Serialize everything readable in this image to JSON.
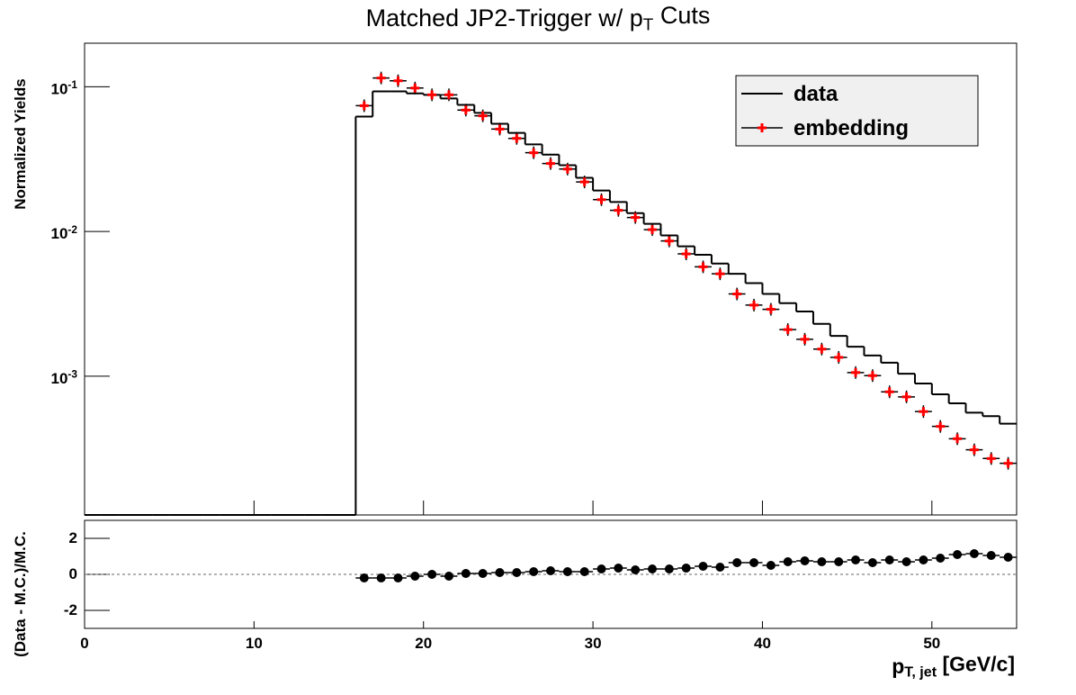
{
  "chart_data": [
    {
      "type": "histogram",
      "title": "Matched JP2-Trigger w/ p_{T} Cuts",
      "ylabel": "Normalized Yields",
      "log_y": true,
      "legend": "top-right",
      "xlim": [
        0,
        55
      ],
      "ylim": [
        0.00011,
        0.2
      ],
      "yticks": [
        {
          "value": 0.1,
          "label": "10^{-1}"
        },
        {
          "value": 0.01,
          "label": "10^{-2}"
        },
        {
          "value": 0.001,
          "label": "10^{-3}"
        }
      ],
      "bins": [
        0,
        1,
        2,
        3,
        4,
        5,
        6,
        7,
        8,
        9,
        10,
        11,
        12,
        13,
        14,
        15,
        16,
        17,
        18,
        19,
        20,
        21,
        22,
        23,
        24,
        25,
        26,
        27,
        28,
        29,
        30,
        31,
        32,
        33,
        34,
        35,
        36,
        37,
        38,
        39,
        40,
        41,
        42,
        43,
        44,
        45,
        46,
        47,
        48,
        49,
        50,
        51,
        52,
        53,
        54,
        55
      ],
      "series": [
        {
          "name": "data",
          "color": "#000000",
          "values": [
            0,
            0,
            0,
            0,
            0,
            0,
            0,
            0,
            0,
            0,
            0,
            0,
            0,
            0,
            0,
            0,
            0.0622,
            0.093,
            0.093,
            0.09,
            0.088,
            0.083,
            0.075,
            0.066,
            0.0555,
            0.048,
            0.04,
            0.034,
            0.0287,
            0.0235,
            0.0192,
            0.016,
            0.0134,
            0.0113,
            0.0094,
            0.0079,
            0.0069,
            0.006,
            0.0051,
            0.0044,
            0.0037,
            0.0032,
            0.0028,
            0.0023,
            0.0019,
            0.0016,
            0.00139,
            0.00124,
            0.00104,
            0.00089,
            0.00075,
            0.00065,
            0.00056,
            0.00053,
            0.00047
          ]
        },
        {
          "name": "embedding",
          "color": "#ff0000",
          "x": [
            16.5,
            17.5,
            18.5,
            19.5,
            20.5,
            21.5,
            22.5,
            23.5,
            24.5,
            25.5,
            26.5,
            27.5,
            28.5,
            29.5,
            30.5,
            31.5,
            32.5,
            33.5,
            34.5,
            35.5,
            36.5,
            37.5,
            38.5,
            39.5,
            40.5,
            41.5,
            42.5,
            43.5,
            44.5,
            45.5,
            46.5,
            47.5,
            48.5,
            49.5,
            50.5,
            51.5,
            52.5,
            53.5,
            54.5
          ],
          "values": [
            0.074,
            0.115,
            0.11,
            0.098,
            0.088,
            0.088,
            0.069,
            0.063,
            0.051,
            0.044,
            0.035,
            0.0295,
            0.027,
            0.022,
            0.0166,
            0.014,
            0.0125,
            0.0103,
            0.0086,
            0.007,
            0.0057,
            0.0051,
            0.0037,
            0.0031,
            0.0029,
            0.0021,
            0.0018,
            0.00154,
            0.00135,
            0.00106,
            0.00101,
            0.00078,
            0.00072,
            0.00057,
            0.00045,
            0.00037,
            0.00031,
            0.00027,
            0.00025
          ]
        }
      ]
    },
    {
      "type": "scatter",
      "xlabel": "p_{T, jet} [GeV/c]",
      "ylabel": "(Data - M.C.)/M.C.",
      "color": "#000000",
      "xlim": [
        0,
        55
      ],
      "xticks": [
        0,
        10,
        20,
        30,
        40,
        50
      ],
      "ylim": [
        -3,
        3
      ],
      "yticks": [
        -2,
        0,
        2
      ],
      "hline": 0,
      "x": [
        16.5,
        17.5,
        18.5,
        19.5,
        20.5,
        21.5,
        22.5,
        23.5,
        24.5,
        25.5,
        26.5,
        27.5,
        28.5,
        29.5,
        30.5,
        31.5,
        32.5,
        33.5,
        34.5,
        35.5,
        36.5,
        37.5,
        38.5,
        39.5,
        40.5,
        41.5,
        42.5,
        43.5,
        44.5,
        45.5,
        46.5,
        47.5,
        48.5,
        49.5,
        50.5,
        51.5,
        52.5,
        53.5,
        54.5
      ],
      "values": [
        -0.2,
        -0.2,
        -0.2,
        -0.1,
        0,
        -0.1,
        0.05,
        0.05,
        0.1,
        0.1,
        0.15,
        0.2,
        0.15,
        0.15,
        0.3,
        0.35,
        0.25,
        0.3,
        0.3,
        0.35,
        0.45,
        0.4,
        0.65,
        0.65,
        0.5,
        0.7,
        0.75,
        0.7,
        0.7,
        0.8,
        0.65,
        0.8,
        0.7,
        0.8,
        0.9,
        1.1,
        1.15,
        1.05,
        0.95
      ]
    }
  ]
}
